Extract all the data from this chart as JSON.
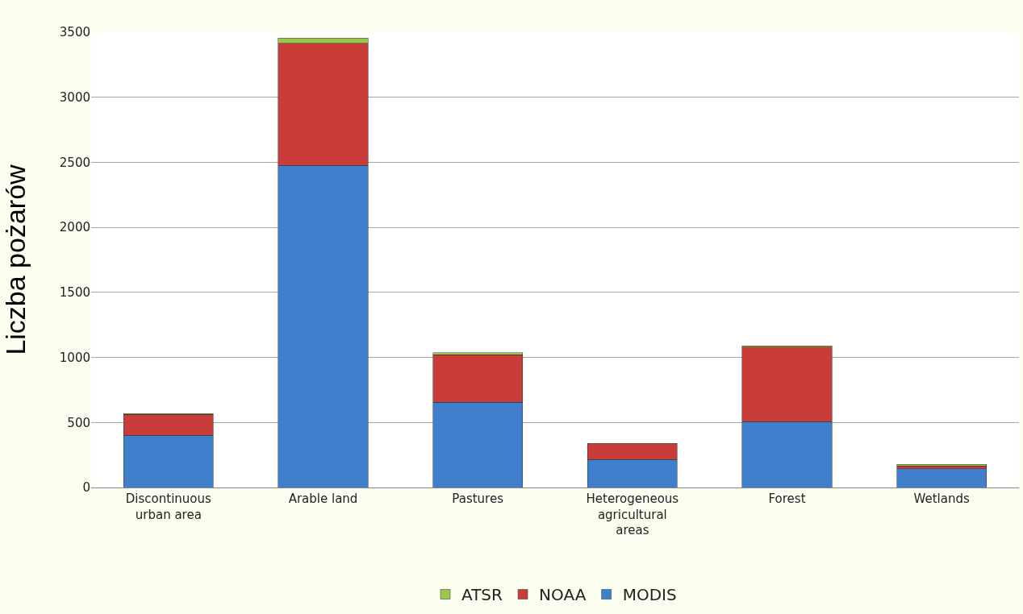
{
  "chart_data": {
    "type": "bar",
    "stacked": true,
    "ylabel": "Liczba pożarów",
    "categories": [
      "Discontinuous urban area",
      "Arable land",
      "Pastures",
      "Heterogeneous agricultural areas",
      "Forest",
      "Wetlands"
    ],
    "series": [
      {
        "name": "MODIS",
        "color": "#3f7fcc",
        "values": [
          400,
          2475,
          655,
          215,
          505,
          145
        ]
      },
      {
        "name": "NOAA",
        "color": "#c83c3a",
        "values": [
          163,
          940,
          365,
          120,
          575,
          20
        ]
      },
      {
        "name": "ATSR",
        "color": "#9bc84a",
        "values": [
          5,
          40,
          15,
          5,
          10,
          12
        ]
      }
    ],
    "ylim": [
      0,
      3500
    ],
    "yticks": [
      0,
      500,
      1000,
      1500,
      2000,
      2500,
      3000,
      3500
    ],
    "grid": "y",
    "legend": "bottom"
  }
}
